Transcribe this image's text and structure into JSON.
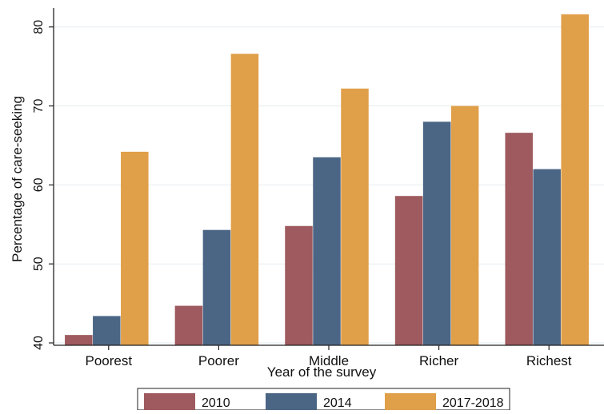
{
  "chart_data": {
    "type": "bar",
    "title": "",
    "xlabel": "Year of the survey",
    "ylabel": "Percentage of care-seeking",
    "categories": [
      "Poorest",
      "Poorer",
      "Middle",
      "Richer",
      "Richest"
    ],
    "yticks": [
      40,
      50,
      60,
      70,
      80
    ],
    "ylim": [
      39.7,
      82.4
    ],
    "grid": true,
    "legend": "bottom",
    "series": [
      {
        "name": "2010",
        "color": "#9E5A5E",
        "values": [
          41.0,
          44.7,
          54.8,
          58.6,
          66.6
        ]
      },
      {
        "name": "2014",
        "color": "#4B6685",
        "values": [
          43.4,
          54.3,
          63.5,
          68.0,
          62.0
        ]
      },
      {
        "name": "2017-2018",
        "color": "#E09F49",
        "values": [
          64.2,
          76.6,
          72.2,
          70.0,
          81.6
        ]
      }
    ]
  }
}
